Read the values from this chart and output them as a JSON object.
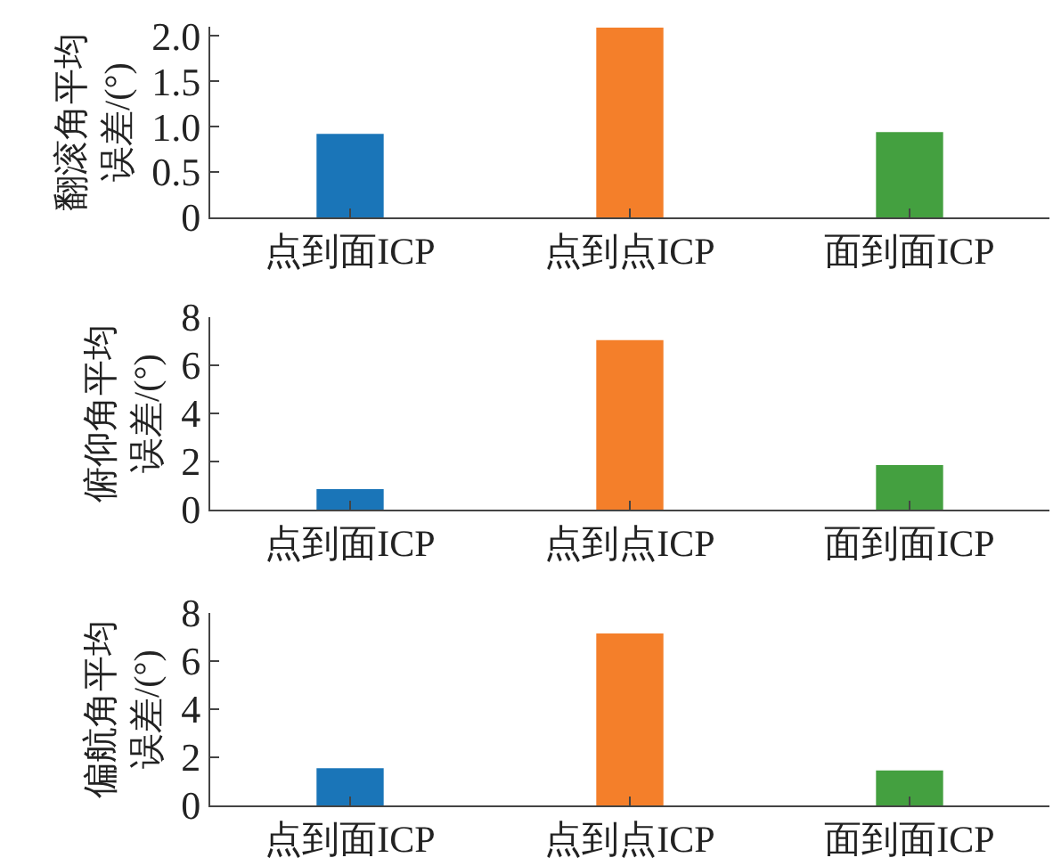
{
  "chart_data": [
    {
      "type": "bar",
      "ylabel": "翻滚角平均误差/(°)",
      "categories": [
        "点到面ICP",
        "点到点ICP",
        "面到面ICP"
      ],
      "values": [
        0.92,
        2.09,
        0.94
      ],
      "colors": [
        "#1a75b8",
        "#f47f2a",
        "#44a040"
      ],
      "ylim": [
        0,
        2.1
      ],
      "yticks": [
        {
          "value": 0,
          "label": "0"
        },
        0.5,
        {
          "value": 1,
          "label": "1.0"
        },
        1.5,
        {
          "value": 2,
          "label": "2.0"
        }
      ],
      "grid": false
    },
    {
      "type": "bar",
      "ylabel": "俯仰角平均误差/(°)",
      "categories": [
        "点到面ICP",
        "点到点ICP",
        "面到面ICP"
      ],
      "values": [
        0.85,
        7.05,
        1.85
      ],
      "colors": [
        "#1a75b8",
        "#f47f2a",
        "#44a040"
      ],
      "ylim": [
        0,
        8
      ],
      "yticks": [
        0,
        2,
        4,
        6,
        8
      ],
      "grid": false
    },
    {
      "type": "bar",
      "ylabel": "偏航角平均误差/(°)",
      "categories": [
        "点到面ICP",
        "点到点ICP",
        "面到面ICP"
      ],
      "values": [
        1.55,
        7.15,
        1.45
      ],
      "colors": [
        "#1a75b8",
        "#f47f2a",
        "#44a040"
      ],
      "ylim": [
        0,
        8
      ],
      "yticks": [
        0,
        2,
        4,
        6,
        8
      ],
      "grid": false
    }
  ]
}
